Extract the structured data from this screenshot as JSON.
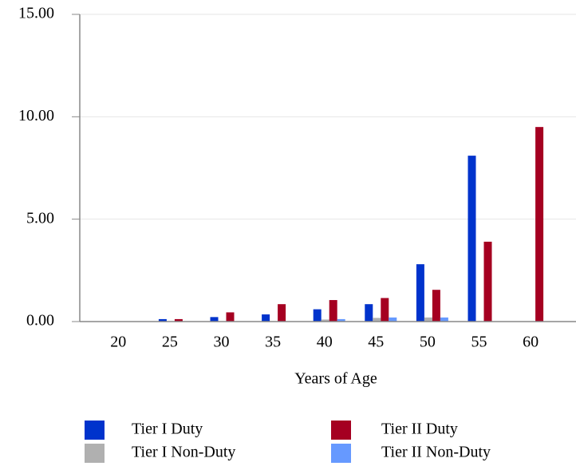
{
  "chart_data": {
    "type": "bar",
    "x_label": "Years of Age",
    "categories": [
      "20",
      "25",
      "30",
      "35",
      "40",
      "45",
      "50",
      "55",
      "60"
    ],
    "series": [
      {
        "name": "Tier I Duty",
        "color": "#0033cc",
        "values": [
          0,
          0.12,
          0.22,
          0.35,
          0.6,
          0.85,
          2.8,
          8.1,
          0
        ]
      },
      {
        "name": "Tier I Non-Duty",
        "color": "#b0b0b0",
        "values": [
          0,
          0,
          0,
          0,
          0.1,
          0.18,
          0.2,
          0,
          0
        ]
      },
      {
        "name": "Tier II Duty",
        "color": "#a50021",
        "values": [
          0,
          0.12,
          0.45,
          0.85,
          1.05,
          1.15,
          1.55,
          3.9,
          9.5
        ]
      },
      {
        "name": "Tier II Non-Duty",
        "color": "#6699ff",
        "values": [
          0,
          0,
          0,
          0,
          0.12,
          0.2,
          0.2,
          0,
          0
        ]
      }
    ],
    "ylim": [
      0,
      15
    ],
    "yticks": [
      {
        "value": 0,
        "label": "0.00"
      },
      {
        "value": 5,
        "label": "5.00"
      },
      {
        "value": 10,
        "label": "10.00"
      },
      {
        "value": 15,
        "label": "15.00"
      }
    ],
    "grid": true
  }
}
